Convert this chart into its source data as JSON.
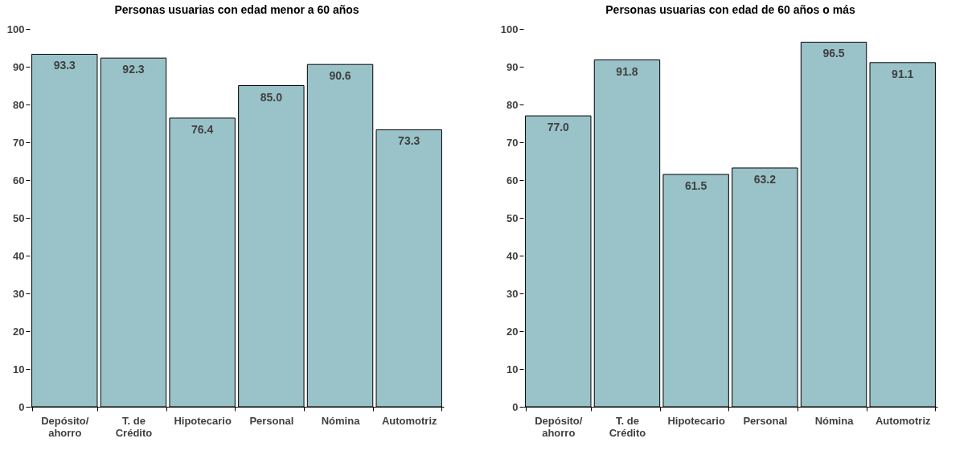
{
  "chart_data": [
    {
      "type": "bar",
      "title": "Personas usuarias con edad menor a 60 años",
      "categories": [
        "Depósito/ ahorro",
        "T. de Crédito",
        "Hipotecario",
        "Personal",
        "Nómina",
        "Automotriz"
      ],
      "values": [
        93.3,
        92.3,
        76.4,
        85.0,
        90.6,
        73.3
      ],
      "value_labels": [
        "93.3",
        "92.3",
        "76.4",
        "85.0",
        "90.6",
        "73.3"
      ],
      "color": "#99c3c9",
      "ylim": [
        0,
        100
      ],
      "yticks": [
        0,
        10,
        20,
        30,
        40,
        50,
        60,
        70,
        80,
        90,
        100
      ],
      "grid": false
    },
    {
      "type": "bar",
      "title": "Personas usuarias con edad de 60 años o más",
      "categories": [
        "Depósito/ ahorro",
        "T. de Crédito",
        "Hipotecario",
        "Personal",
        "Nómina",
        "Automotriz"
      ],
      "values": [
        77.0,
        91.8,
        61.5,
        63.2,
        96.5,
        91.1
      ],
      "value_labels": [
        "77.0",
        "91.8",
        "61.5",
        "63.2",
        "96.5",
        "91.1"
      ],
      "color": "#99c3c9",
      "ylim": [
        0,
        100
      ],
      "yticks": [
        0,
        10,
        20,
        30,
        40,
        50,
        60,
        70,
        80,
        90,
        100
      ],
      "grid": false
    }
  ]
}
